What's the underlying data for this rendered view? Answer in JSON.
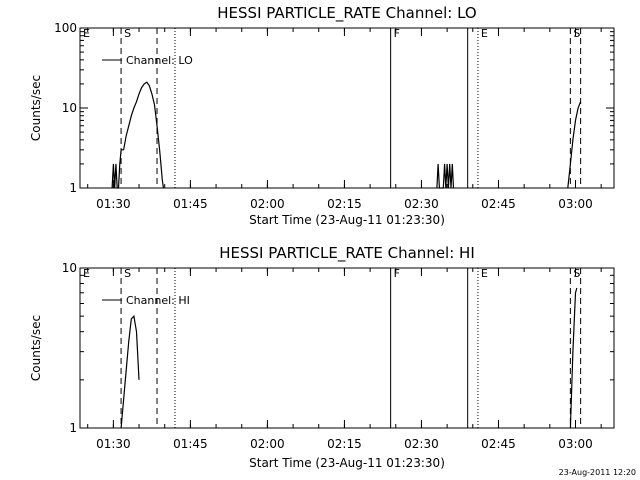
{
  "footer": {
    "stamp": "23-Aug-2011 12:20"
  },
  "chart_data": [
    {
      "type": "line",
      "title": "HESSI PARTICLE_RATE Channel: LO",
      "xlabel": "Start Time (23-Aug-11 01:23:30)",
      "ylabel": "Counts/sec",
      "y_scale": "log",
      "ylim": [
        1,
        100
      ],
      "y_ticks": [
        {
          "value": 1,
          "label": "1"
        },
        {
          "value": 10,
          "label": "10"
        },
        {
          "value": 100,
          "label": "100"
        }
      ],
      "xlim": [
        "01:23:30",
        "03:07:30"
      ],
      "x_ticks": [
        "01:30",
        "01:45",
        "02:00",
        "02:15",
        "02:30",
        "02:45",
        "03:00"
      ],
      "legend": {
        "label": "Channel: LO",
        "placement": "top-left"
      },
      "events": [
        {
          "label": "E",
          "time": "01:23:30",
          "style": "none"
        },
        {
          "label": "S",
          "time": "01:31:30",
          "style": "dashed"
        },
        {
          "label": "",
          "time": "01:38:30",
          "style": "dashed"
        },
        {
          "label": "",
          "time": "01:42:00",
          "style": "dotted"
        },
        {
          "label": "F",
          "time": "02:24:00",
          "style": "solid"
        },
        {
          "label": "",
          "time": "02:39:00",
          "style": "solid"
        },
        {
          "label": "E",
          "time": "02:41:00",
          "style": "dotted"
        },
        {
          "label": "S",
          "time": "02:59:00",
          "style": "dashed"
        },
        {
          "label": "",
          "time": "03:01:00",
          "style": "dashed"
        }
      ],
      "series": [
        {
          "name": "Channel: LO",
          "segments": [
            [
              [
                "01:29:45",
                1
              ],
              [
                "01:30:00",
                2
              ],
              [
                "01:30:15",
                1
              ],
              [
                "01:30:30",
                2
              ],
              [
                "01:30:45",
                1
              ],
              [
                "01:31:00",
                1
              ],
              [
                "01:31:15",
                2
              ],
              [
                "01:31:30",
                3
              ],
              [
                "01:32:00",
                3
              ],
              [
                "01:32:30",
                4.5
              ],
              [
                "01:33:00",
                6
              ],
              [
                "01:33:30",
                8
              ],
              [
                "01:34:00",
                10
              ],
              [
                "01:34:30",
                12
              ],
              [
                "01:35:00",
                15
              ],
              [
                "01:35:30",
                18
              ],
              [
                "01:36:00",
                20
              ],
              [
                "01:36:30",
                21
              ],
              [
                "01:37:00",
                19
              ],
              [
                "01:37:30",
                15
              ],
              [
                "01:38:00",
                11
              ],
              [
                "01:38:30",
                6
              ],
              [
                "01:39:00",
                3
              ],
              [
                "01:39:15",
                2
              ],
              [
                "01:39:30",
                1.3
              ],
              [
                "01:39:45",
                1
              ]
            ],
            [
              [
                "02:33:00",
                1
              ],
              [
                "02:33:15",
                2
              ],
              [
                "02:33:30",
                1
              ],
              [
                "02:34:15",
                1
              ],
              [
                "02:34:30",
                2
              ],
              [
                "02:34:45",
                1
              ],
              [
                "02:35:00",
                2
              ],
              [
                "02:35:15",
                1
              ],
              [
                "02:35:30",
                2
              ],
              [
                "02:35:45",
                1
              ],
              [
                "02:36:00",
                2
              ],
              [
                "02:36:15",
                1
              ]
            ],
            [
              [
                "02:58:30",
                1
              ],
              [
                "02:59:00",
                2
              ],
              [
                "02:59:30",
                4
              ],
              [
                "03:00:00",
                7
              ],
              [
                "03:00:30",
                10
              ],
              [
                "03:01:00",
                12
              ]
            ]
          ]
        }
      ]
    },
    {
      "type": "line",
      "title": "HESSI PARTICLE_RATE Channel: HI",
      "xlabel": "Start Time (23-Aug-11 01:23:30)",
      "ylabel": "Counts/sec",
      "y_scale": "log",
      "ylim": [
        1,
        10
      ],
      "y_ticks": [
        {
          "value": 1,
          "label": "1"
        },
        {
          "value": 10,
          "label": "10"
        }
      ],
      "xlim": [
        "01:23:30",
        "03:07:30"
      ],
      "x_ticks": [
        "01:30",
        "01:45",
        "02:00",
        "02:15",
        "02:30",
        "02:45",
        "03:00"
      ],
      "legend": {
        "label": "Channel: HI",
        "placement": "top-left"
      },
      "events": [
        {
          "label": "E",
          "time": "01:23:30",
          "style": "none"
        },
        {
          "label": "S",
          "time": "01:31:30",
          "style": "dashed"
        },
        {
          "label": "",
          "time": "01:38:30",
          "style": "dashed"
        },
        {
          "label": "",
          "time": "01:42:00",
          "style": "dotted"
        },
        {
          "label": "F",
          "time": "02:24:00",
          "style": "solid"
        },
        {
          "label": "",
          "time": "02:39:00",
          "style": "solid"
        },
        {
          "label": "E",
          "time": "02:41:00",
          "style": "dotted"
        },
        {
          "label": "S",
          "time": "02:59:00",
          "style": "dashed"
        },
        {
          "label": "",
          "time": "03:01:00",
          "style": "dashed"
        }
      ],
      "series": [
        {
          "name": "Channel: HI",
          "segments": [
            [
              [
                "01:31:30",
                1
              ],
              [
                "01:32:00",
                1.5
              ],
              [
                "01:32:30",
                2.3
              ],
              [
                "01:33:00",
                3.5
              ],
              [
                "01:33:30",
                4.8
              ],
              [
                "01:34:00",
                5
              ],
              [
                "01:34:30",
                4
              ],
              [
                "01:35:00",
                2
              ]
            ],
            [
              [
                "02:59:00",
                1
              ],
              [
                "02:59:30",
                3
              ],
              [
                "03:00:00",
                7
              ],
              [
                "03:00:15",
                7.5
              ]
            ]
          ]
        }
      ]
    }
  ]
}
